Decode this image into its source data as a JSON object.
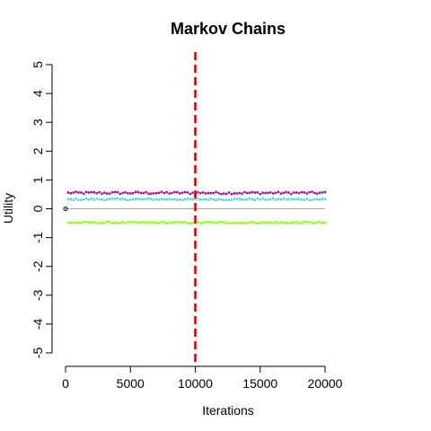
{
  "chart_data": {
    "type": "scatter",
    "title": "Markov Chains",
    "xlabel": "Iterations",
    "ylabel": "Utility",
    "xlim": [
      0,
      20000
    ],
    "ylim": [
      -5,
      5
    ],
    "x_ticks": [
      0,
      5000,
      10000,
      15000,
      20000
    ],
    "y_ticks": [
      -5,
      -4,
      -3,
      -2,
      -1,
      0,
      1,
      2,
      3,
      4,
      5
    ],
    "grid": false,
    "legend": "none",
    "initial_point": {
      "x": 0,
      "y": 0
    },
    "burn_in_line": {
      "x": 10000,
      "color": "#d00000",
      "style": "dashed"
    },
    "reference_line": {
      "y": 0,
      "color": "#a9a9a9"
    },
    "series": [
      {
        "color": "#a000a0",
        "x_start": 200,
        "x_end": 20000,
        "x_step": 200,
        "center": 0.55,
        "spread": 0.04
      },
      {
        "color": "#40e0d0",
        "x_start": 200,
        "x_end": 20000,
        "x_step": 200,
        "center": 0.33,
        "spread": 0.03
      },
      {
        "color": "#7fff00",
        "x_start": 200,
        "x_end": 20000,
        "x_step": 200,
        "center": -0.48,
        "spread": 0.03
      }
    ]
  }
}
